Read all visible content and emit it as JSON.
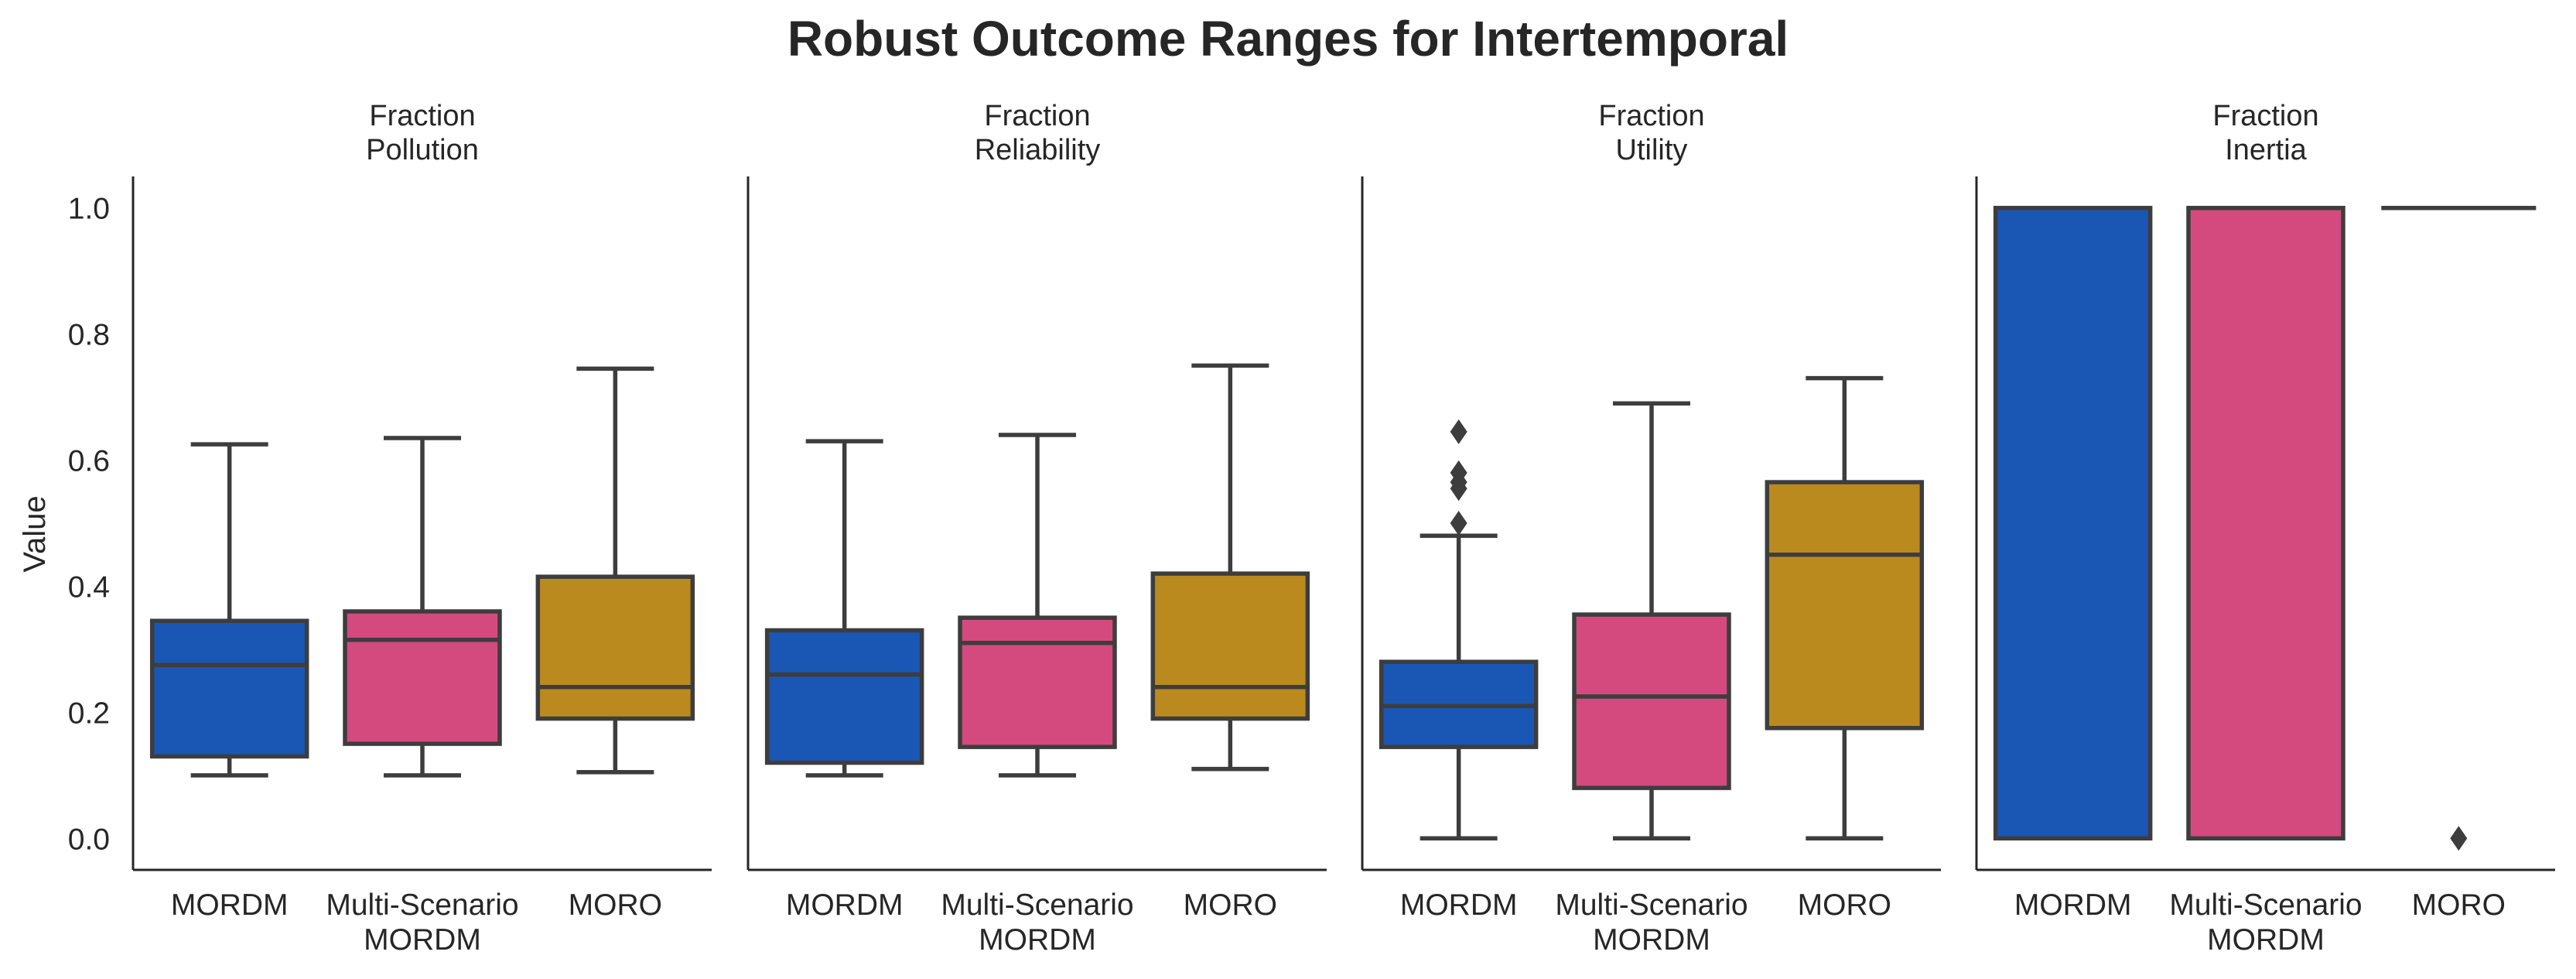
{
  "chart_data": {
    "type": "box",
    "title": "Robust Outcome Ranges for Intertemporal",
    "ylabel": "Value",
    "ylim": [
      -0.05,
      1.05
    ],
    "yticks": [
      "0.0",
      "0.2",
      "0.4",
      "0.6",
      "0.8",
      "1.0"
    ],
    "categories": [
      {
        "line1": "MORDM",
        "line2": ""
      },
      {
        "line1": "Multi-Scenario",
        "line2": "MORDM"
      },
      {
        "line1": "MORO",
        "line2": ""
      }
    ],
    "colors": [
      "#1a56b4",
      "#d44a7e",
      "#bb8a1e"
    ],
    "grid": false,
    "panels": [
      {
        "title_line1": "Fraction",
        "title_line2": "Pollution",
        "boxes": [
          {
            "whislo": 0.1,
            "q1": 0.13,
            "med": 0.275,
            "q3": 0.345,
            "whishi": 0.625,
            "fliers": []
          },
          {
            "whislo": 0.1,
            "q1": 0.15,
            "med": 0.315,
            "q3": 0.36,
            "whishi": 0.635,
            "fliers": []
          },
          {
            "whislo": 0.105,
            "q1": 0.19,
            "med": 0.24,
            "q3": 0.415,
            "whishi": 0.745,
            "fliers": []
          }
        ]
      },
      {
        "title_line1": "Fraction",
        "title_line2": "Reliability",
        "boxes": [
          {
            "whislo": 0.1,
            "q1": 0.12,
            "med": 0.26,
            "q3": 0.33,
            "whishi": 0.63,
            "fliers": []
          },
          {
            "whislo": 0.1,
            "q1": 0.145,
            "med": 0.31,
            "q3": 0.35,
            "whishi": 0.64,
            "fliers": []
          },
          {
            "whislo": 0.11,
            "q1": 0.19,
            "med": 0.24,
            "q3": 0.42,
            "whishi": 0.75,
            "fliers": []
          }
        ]
      },
      {
        "title_line1": "Fraction",
        "title_line2": "Utility",
        "boxes": [
          {
            "whislo": 0.0,
            "q1": 0.145,
            "med": 0.21,
            "q3": 0.28,
            "whishi": 0.48,
            "fliers": [
              0.5,
              0.555,
              0.565,
              0.58,
              0.645
            ]
          },
          {
            "whislo": 0.0,
            "q1": 0.08,
            "med": 0.225,
            "q3": 0.355,
            "whishi": 0.69,
            "fliers": []
          },
          {
            "whislo": 0.0,
            "q1": 0.175,
            "med": 0.45,
            "q3": 0.565,
            "whishi": 0.73,
            "fliers": []
          }
        ]
      },
      {
        "title_line1": "Fraction",
        "title_line2": "Inertia",
        "boxes": [
          {
            "whislo": 0.0,
            "q1": 0.0,
            "med": 1.0,
            "q3": 1.0,
            "whishi": 1.0,
            "fliers": []
          },
          {
            "whislo": 0.0,
            "q1": 0.0,
            "med": 1.0,
            "q3": 1.0,
            "whishi": 1.0,
            "fliers": []
          },
          {
            "whislo": 1.0,
            "q1": 1.0,
            "med": 1.0,
            "q3": 1.0,
            "whishi": 1.0,
            "fliers": [
              0.0
            ]
          }
        ]
      }
    ]
  }
}
